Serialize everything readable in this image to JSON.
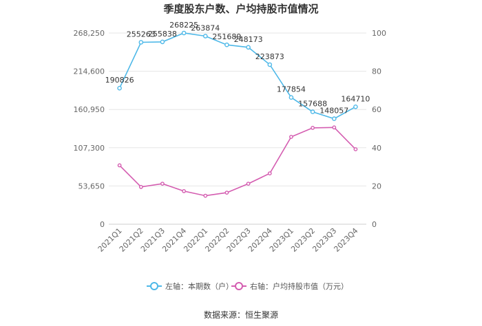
{
  "chart_data": {
    "type": "line",
    "title": "季度股东户数、户均持股市值情况",
    "categories": [
      "2021Q1",
      "2021Q2",
      "2021Q3",
      "2021Q4",
      "2022Q1",
      "2022Q2",
      "2022Q3",
      "2022Q4",
      "2023Q1",
      "2023Q2",
      "2023Q3",
      "2023Q4"
    ],
    "left_axis": {
      "ylim": [
        0,
        268250
      ],
      "ticks": [
        "0",
        "53,650",
        "107,300",
        "160,950",
        "214,600",
        "268,250"
      ],
      "tick_values": [
        0,
        53650,
        107300,
        160950,
        214600,
        268250
      ]
    },
    "right_axis": {
      "ylim": [
        0,
        100
      ],
      "ticks": [
        "0",
        "20",
        "40",
        "60",
        "80",
        "100"
      ],
      "tick_values": [
        0,
        20,
        40,
        60,
        80,
        100
      ]
    },
    "series": [
      {
        "name": "左轴：本期数（户）",
        "axis": "left",
        "color": "#4db8e8",
        "values": [
          190826,
          255263,
          255838,
          268225,
          263874,
          251689,
          248173,
          223873,
          177854,
          157688,
          148057,
          164710
        ],
        "labels": [
          "190826",
          "255263",
          "255838",
          "268225",
          "263874",
          "251689",
          "248173",
          "223873",
          "177854",
          "157688",
          "148057",
          "164710"
        ]
      },
      {
        "name": "右轴：户均持股市值（万元）",
        "axis": "right",
        "color": "#d45cb0",
        "values": [
          30.8,
          19.5,
          21.2,
          17.3,
          14.9,
          16.5,
          21.2,
          26.6,
          45.7,
          50.4,
          50.6,
          39.2
        ]
      }
    ],
    "grid": true,
    "legend_position": "bottom"
  },
  "source_text": "数据来源：恒生聚源"
}
